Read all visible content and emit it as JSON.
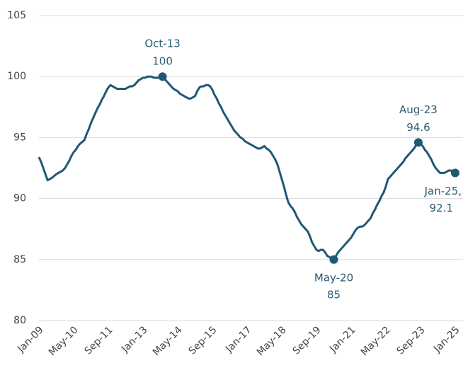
{
  "chart_data": {
    "type": "line",
    "categories": [
      "Jan-09",
      null,
      null,
      null,
      null,
      null,
      null,
      null,
      null,
      null,
      null,
      null,
      null,
      null,
      null,
      null,
      "May-10",
      null,
      null,
      null,
      null,
      null,
      null,
      null,
      null,
      null,
      null,
      null,
      null,
      null,
      null,
      null,
      "Sep-11",
      null,
      null,
      null,
      null,
      null,
      null,
      null,
      null,
      null,
      null,
      null,
      null,
      null,
      null,
      null,
      "Jan-13",
      null,
      null,
      null,
      null,
      null,
      null,
      null,
      null,
      null,
      null,
      null,
      null,
      null,
      null,
      null,
      "May-14",
      null,
      null,
      null,
      null,
      null,
      null,
      null,
      null,
      null,
      null,
      null,
      null,
      null,
      null,
      null,
      "Sep-15",
      null,
      null,
      null,
      null,
      null,
      null,
      null,
      null,
      null,
      null,
      null,
      null,
      null,
      null,
      null,
      "Jan-17",
      null,
      null,
      null,
      null,
      null,
      null,
      null,
      null,
      null,
      null,
      null,
      null,
      null,
      null,
      null,
      "May-18",
      null,
      null,
      null,
      null,
      null,
      null,
      null,
      null,
      null,
      null,
      null,
      null,
      null,
      null,
      null,
      "Sep-19",
      null,
      null,
      null,
      null,
      null,
      null,
      null,
      null,
      null,
      null,
      null,
      null,
      null,
      null,
      null,
      "Jan-21",
      null,
      null,
      null,
      null,
      null,
      null,
      null,
      null,
      null,
      null,
      null,
      null,
      null,
      null,
      null,
      "May-22",
      null,
      null,
      null,
      null,
      null,
      null,
      null,
      null,
      null,
      null,
      null,
      null,
      null,
      null,
      null,
      "Sep-23",
      null,
      null,
      null,
      null,
      null,
      null,
      null,
      null,
      null,
      null,
      null,
      null,
      null,
      null,
      null,
      "Jan-25"
    ],
    "series": [
      {
        "color": "#1f5873",
        "values": [
          93.4,
          93.0,
          92.5,
          92.0,
          91.5,
          91.6,
          91.7,
          91.85,
          92.0,
          92.1,
          92.2,
          92.3,
          92.5,
          92.8,
          93.1,
          93.5,
          93.8,
          94.0,
          94.3,
          94.5,
          94.65,
          94.8,
          95.3,
          95.7,
          96.2,
          96.6,
          97.0,
          97.4,
          97.7,
          98.1,
          98.4,
          98.8,
          99.1,
          99.3,
          99.2,
          99.1,
          99.0,
          99.0,
          99.0,
          99.0,
          99.0,
          99.1,
          99.2,
          99.2,
          99.3,
          99.5,
          99.7,
          99.8,
          99.9,
          99.9,
          100.0,
          100.0,
          100.0,
          99.9,
          99.9,
          99.9,
          100.0,
          100.0,
          99.8,
          99.6,
          99.4,
          99.2,
          99.0,
          98.9,
          98.8,
          98.6,
          98.5,
          98.4,
          98.3,
          98.2,
          98.2,
          98.3,
          98.4,
          98.8,
          99.1,
          99.2,
          99.2,
          99.3,
          99.3,
          99.2,
          98.9,
          98.5,
          98.2,
          97.8,
          97.5,
          97.1,
          96.8,
          96.5,
          96.2,
          95.9,
          95.6,
          95.4,
          95.2,
          95.0,
          94.9,
          94.7,
          94.6,
          94.5,
          94.4,
          94.3,
          94.2,
          94.1,
          94.1,
          94.2,
          94.3,
          94.1,
          94.0,
          93.8,
          93.5,
          93.2,
          92.8,
          92.2,
          91.6,
          91.0,
          90.3,
          89.7,
          89.4,
          89.2,
          88.9,
          88.5,
          88.2,
          87.9,
          87.7,
          87.5,
          87.3,
          86.9,
          86.4,
          86.1,
          85.8,
          85.7,
          85.8,
          85.8,
          85.6,
          85.3,
          85.2,
          85.1,
          85.0,
          85.3,
          85.6,
          85.8,
          86.0,
          86.2,
          86.4,
          86.6,
          86.8,
          87.1,
          87.4,
          87.6,
          87.7,
          87.7,
          87.8,
          88.0,
          88.2,
          88.4,
          88.8,
          89.1,
          89.5,
          89.8,
          90.2,
          90.5,
          91.0,
          91.6,
          91.8,
          92.0,
          92.2,
          92.4,
          92.6,
          92.8,
          93.0,
          93.3,
          93.5,
          93.7,
          93.9,
          94.1,
          94.4,
          94.6,
          94.5,
          94.3,
          94.0,
          93.8,
          93.5,
          93.2,
          92.8,
          92.5,
          92.3,
          92.1,
          92.1,
          92.1,
          92.2,
          92.3,
          92.3,
          92.2,
          92.1
        ]
      }
    ],
    "annotations": [
      {
        "text": "Oct-13",
        "value": 100
      },
      {
        "text": "May-20",
        "value": 85
      },
      {
        "text": "Aug-23",
        "value": 94.6
      },
      {
        "text": "Jan-25,",
        "value": 92.1
      }
    ],
    "ylim": [
      80,
      105
    ],
    "yticks": [
      80,
      85,
      90,
      95,
      100,
      105
    ],
    "grid": true
  }
}
